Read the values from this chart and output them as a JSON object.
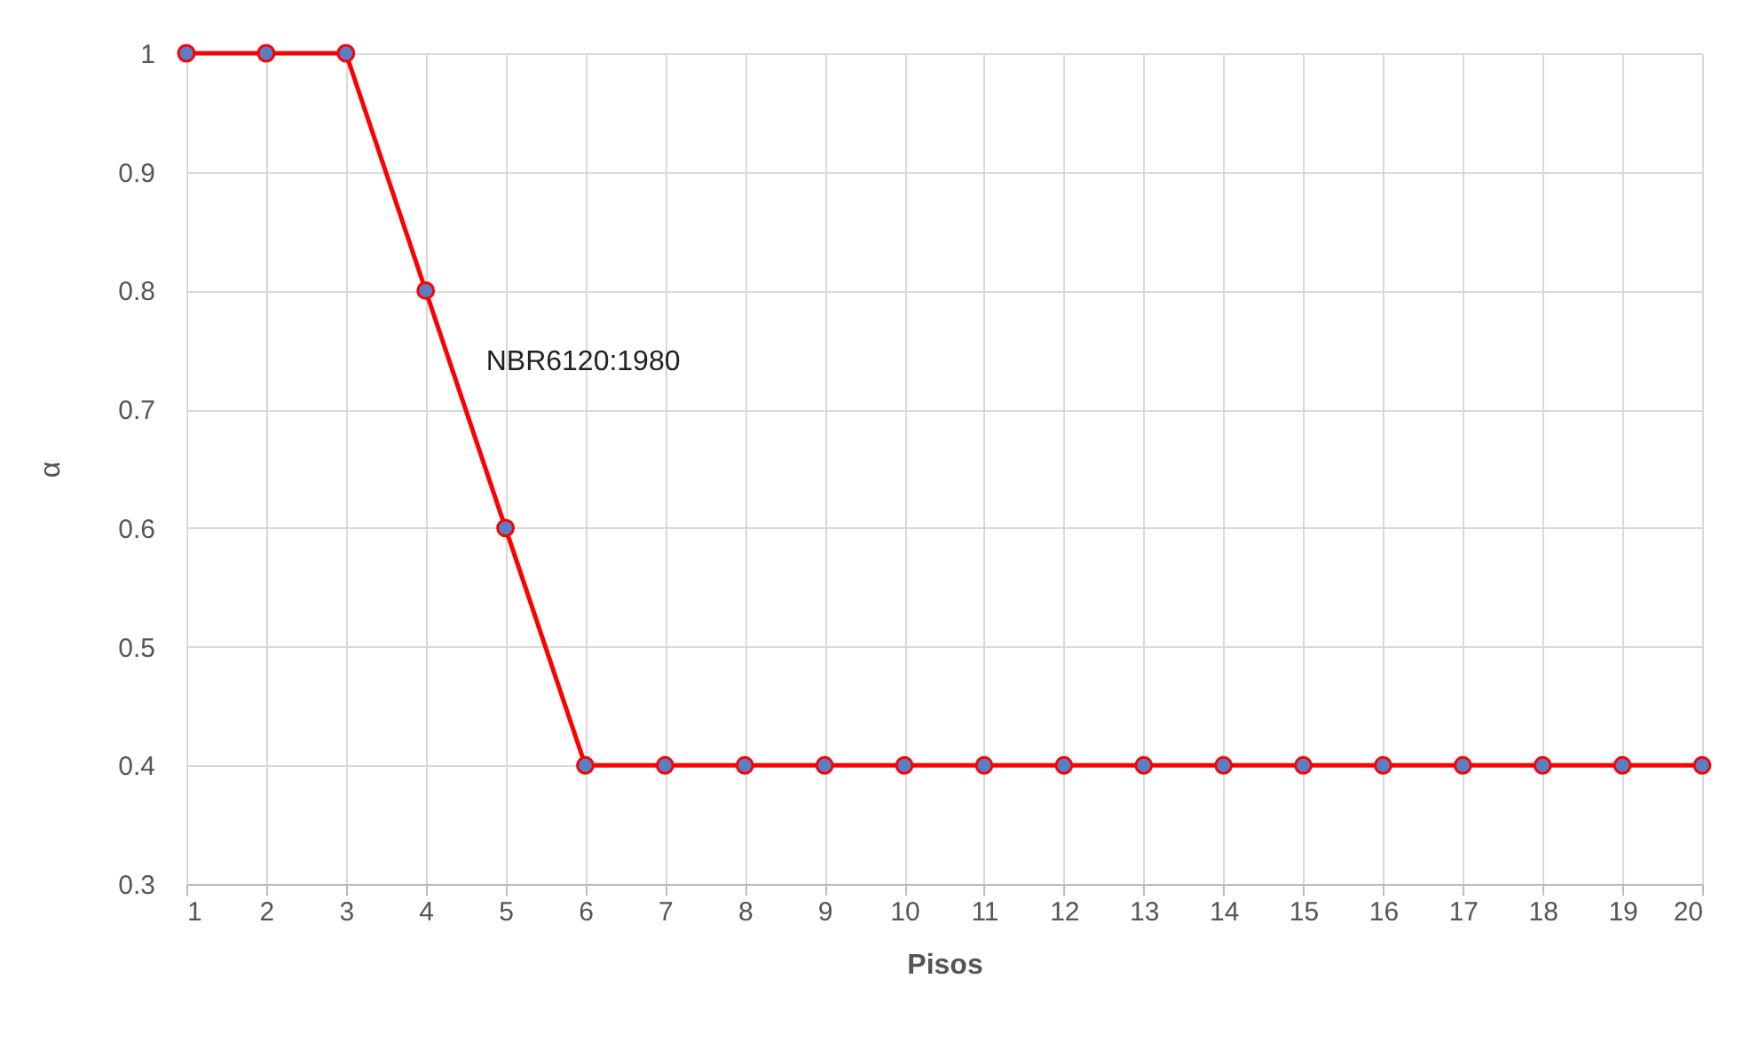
{
  "chart_data": {
    "type": "line",
    "xlabel": "Pisos",
    "ylabel": "α",
    "x": [
      1,
      2,
      3,
      4,
      5,
      6,
      7,
      8,
      9,
      10,
      11,
      12,
      13,
      14,
      15,
      16,
      17,
      18,
      19,
      20
    ],
    "series": [
      {
        "name": "NBR6120:1980",
        "color": "#ff0000",
        "values": [
          1,
          1,
          1,
          0.8,
          0.6,
          0.4,
          0.4,
          0.4,
          0.4,
          0.4,
          0.4,
          0.4,
          0.4,
          0.4,
          0.4,
          0.4,
          0.4,
          0.4,
          0.4,
          0.4
        ]
      }
    ],
    "xlim": [
      1,
      20
    ],
    "xticks": [
      1,
      2,
      3,
      4,
      5,
      6,
      7,
      8,
      9,
      10,
      11,
      12,
      13,
      14,
      15,
      16,
      17,
      18,
      19,
      20
    ],
    "ylim": [
      0.3,
      1
    ],
    "yticks": [
      0.3,
      0.4,
      0.5,
      0.6,
      0.7,
      0.8,
      0.9,
      1
    ],
    "grid": true,
    "marker": "circle",
    "line_style": "solid"
  }
}
